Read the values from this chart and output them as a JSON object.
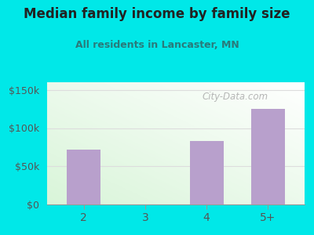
{
  "title": "Median family income by family size",
  "subtitle": "All residents in Lancaster, MN",
  "categories": [
    "2",
    "3",
    "4",
    "5+"
  ],
  "values": [
    72000,
    0,
    83000,
    125000
  ],
  "bar_color": "#b8a0cc",
  "outer_bg": "#00e8e8",
  "title_color": "#222222",
  "subtitle_color": "#2a7a7a",
  "axis_label_color": "#555555",
  "yticks": [
    0,
    50000,
    100000,
    150000
  ],
  "ytick_labels": [
    "$0",
    "$50k",
    "$100k",
    "$150k"
  ],
  "ylim": [
    0,
    160000
  ],
  "watermark": "City-Data.com",
  "watermark_color": "#aaaaaa",
  "grid_color": "#dddddd"
}
